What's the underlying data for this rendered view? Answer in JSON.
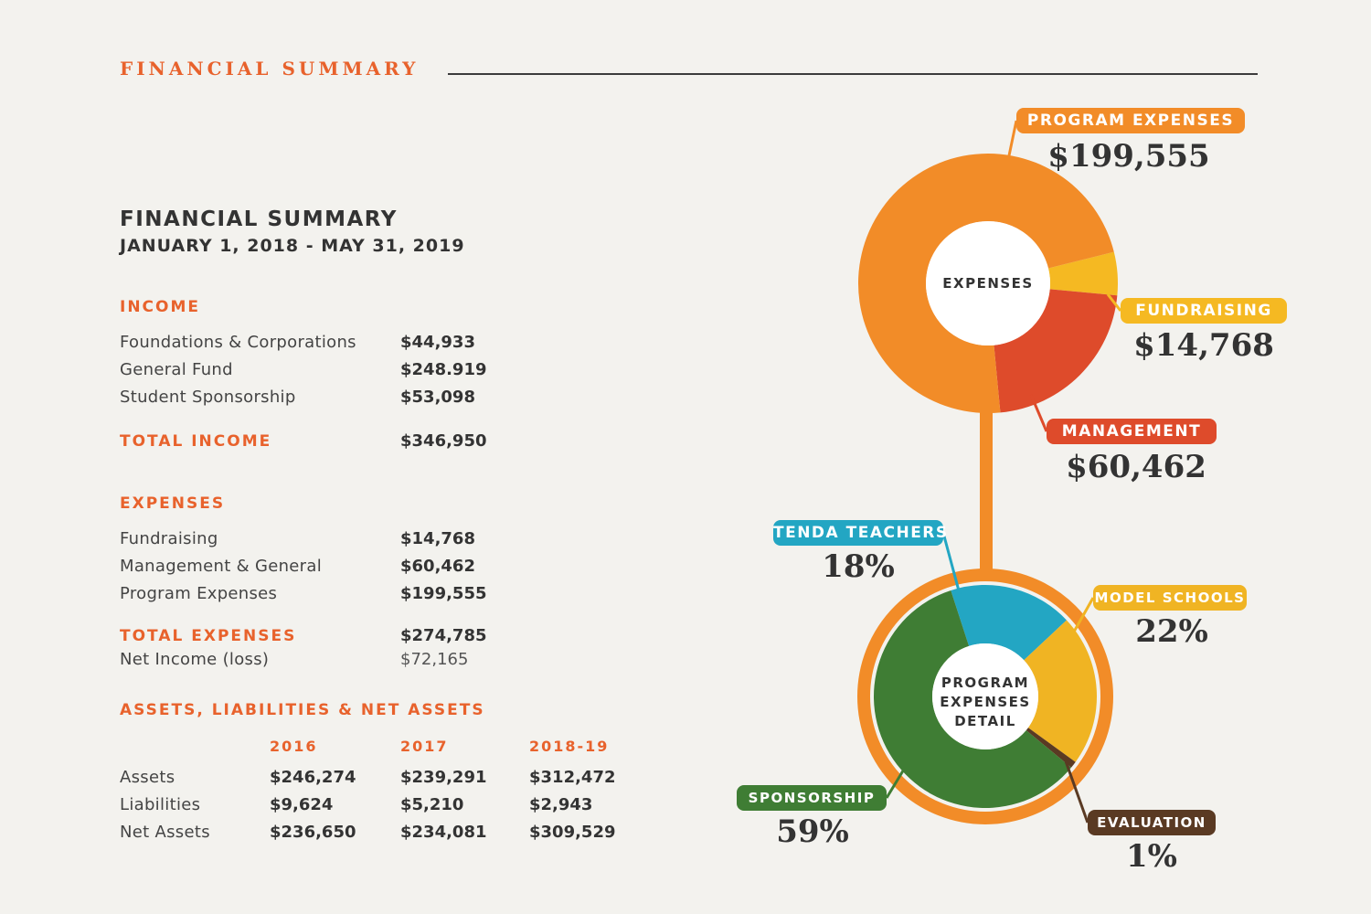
{
  "header": {
    "title": "FINANCIAL SUMMARY"
  },
  "summary": {
    "title": "FINANCIAL SUMMARY",
    "period": "JANUARY 1, 2018 -  MAY 31, 2019",
    "income": {
      "heading": "INCOME",
      "rows": [
        {
          "label": "Foundations & Corporations",
          "value": "$44,933"
        },
        {
          "label": "General Fund",
          "value": "$248.919"
        },
        {
          "label": "Student Sponsorship",
          "value": "$53,098"
        }
      ],
      "total_label": "TOTAL INCOME",
      "total_value": "$346,950"
    },
    "expenses": {
      "heading": "EXPENSES",
      "rows": [
        {
          "label": "Fundraising",
          "value": "$14,768"
        },
        {
          "label": "Management & General",
          "value": "$60,462"
        },
        {
          "label": "Program Expenses",
          "value": "$199,555"
        }
      ],
      "total_label": "TOTAL EXPENSES",
      "total_value": "$274,785",
      "net_label": "Net Income (loss)",
      "net_value": "$72,165"
    },
    "assets": {
      "heading": "ASSETS, LIABILITIES & NET ASSETS",
      "years": [
        "2016",
        "2017",
        "2018-19"
      ],
      "rows": [
        {
          "label": "Assets",
          "values": [
            "$246,274",
            "$239,291",
            "$312,472"
          ]
        },
        {
          "label": "Liabilities",
          "values": [
            "$9,624",
            "$5,210",
            "$2,943"
          ]
        },
        {
          "label": "Net Assets",
          "values": [
            "$236,650",
            "$234,081",
            "$309,529"
          ]
        }
      ]
    }
  },
  "chart_data": [
    {
      "type": "pie",
      "center_label": "EXPENSES",
      "slices": [
        {
          "label": "PROGRAM EXPENSES",
          "value": 199555,
          "display": "$199,555",
          "color": "#f28c28"
        },
        {
          "label": "FUNDRAISING",
          "value": 14768,
          "display": "$14,768",
          "color": "#f5b922"
        },
        {
          "label": "MANAGEMENT",
          "value": 60462,
          "display": "$60,462",
          "color": "#de4b2b"
        }
      ]
    },
    {
      "type": "pie",
      "center_label": "PROGRAM EXPENSES DETAIL",
      "center_lines": [
        "PROGRAM",
        "EXPENSES",
        "DETAIL"
      ],
      "slices": [
        {
          "label": "TENDA TEACHERS",
          "value": 18,
          "display": "18%",
          "color": "#23a6c3"
        },
        {
          "label": "MODEL SCHOOLS",
          "value": 22,
          "display": "22%",
          "color": "#f0b423"
        },
        {
          "label": "EVALUATION",
          "value": 1,
          "display": "1%",
          "color": "#5a3a23"
        },
        {
          "label": "SPONSORSHIP",
          "value": 59,
          "display": "59%",
          "color": "#3f7d34"
        }
      ]
    }
  ]
}
